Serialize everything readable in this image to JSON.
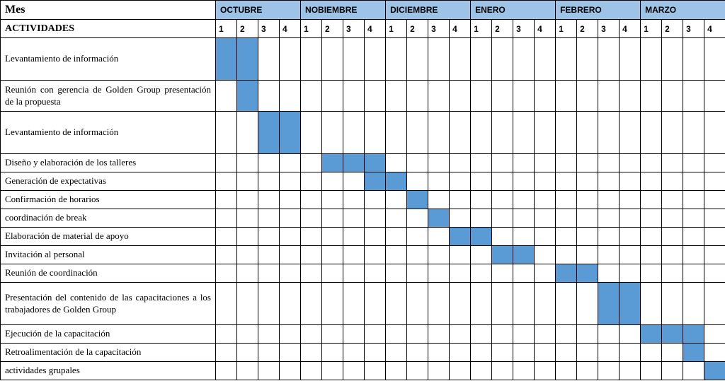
{
  "colors": {
    "month_header_bg": "#9dc3e6",
    "fill": "#5b9bd5",
    "border": "#000000",
    "bg": "#ffffff"
  },
  "headers": {
    "mes": "Mes",
    "actividades": "ACTIVIDADES"
  },
  "months": [
    {
      "name": "OCTUBRE",
      "weeks": [
        "1",
        "2",
        "3",
        "4"
      ]
    },
    {
      "name": "NOBIEMBRE",
      "weeks": [
        "1",
        "2",
        "3",
        "4"
      ]
    },
    {
      "name": "DICIEMBRE",
      "weeks": [
        "1",
        "2",
        "3",
        "4"
      ]
    },
    {
      "name": "ENERO",
      "weeks": [
        "1",
        "2",
        "3",
        "4"
      ]
    },
    {
      "name": "FEBRERO",
      "weeks": [
        "1",
        "2",
        "3",
        "4"
      ]
    },
    {
      "name": "MARZO",
      "weeks": [
        "1",
        "2",
        "3",
        "4"
      ]
    }
  ],
  "activities": [
    {
      "label": "Levantamiento de información",
      "filled": [
        0,
        1
      ],
      "row_h": "row-h1",
      "justify": false
    },
    {
      "label": "Reunión con gerencia de Golden Group presentación de la propuesta",
      "filled": [
        1
      ],
      "row_h": "row-h2",
      "justify": true
    },
    {
      "label": "Levantamiento de información",
      "filled": [
        2,
        3
      ],
      "row_h": "row-h1",
      "justify": false
    },
    {
      "label": "Diseño y elaboración de los talleres",
      "filled": [
        5,
        6,
        7
      ],
      "row_h": "row-h3",
      "justify": false
    },
    {
      "label": "Generación de expectativas",
      "filled": [
        7,
        8
      ],
      "row_h": "row-h3",
      "justify": false
    },
    {
      "label": "Confirmación de horarios",
      "filled": [
        9
      ],
      "row_h": "row-h3",
      "justify": false
    },
    {
      "label": "coordinación de break",
      "filled": [
        10
      ],
      "row_h": "row-h3",
      "justify": false
    },
    {
      "label": "Elaboración de material de apoyo",
      "filled": [
        11,
        12
      ],
      "row_h": "row-h3",
      "justify": false
    },
    {
      "label": "Invitación al personal",
      "filled": [
        13,
        14
      ],
      "row_h": "row-h3",
      "justify": false
    },
    {
      "label": "Reunión de coordinación",
      "filled": [
        16,
        17
      ],
      "row_h": "row-h3",
      "justify": false
    },
    {
      "label": "Presentación del contenido de las capacitaciones a los trabajadores de Golden Group",
      "filled": [
        18,
        19
      ],
      "row_h": "row-h-presentacion",
      "justify": true
    },
    {
      "label": "Ejecución de la capacitación",
      "filled": [
        20,
        21,
        22
      ],
      "row_h": "row-h3",
      "justify": false
    },
    {
      "label": "Retroalimentación de la capacitación",
      "filled": [
        22
      ],
      "row_h": "row-h3",
      "justify": false
    },
    {
      "label": "actividades grupales",
      "filled": [
        23
      ],
      "row_h": "row-h3",
      "justify": false
    }
  ],
  "chart": {
    "type": "gantt",
    "total_weeks": 24,
    "cell_border_color": "#000000",
    "month_header_bg": "#9dc3e6",
    "bar_fill_color": "#5b9bd5",
    "font_family_header": "Arial",
    "font_family_body": "Times New Roman",
    "font_size_mes": 16,
    "font_size_month": 12,
    "font_size_week": 12,
    "font_size_activity": 13
  }
}
